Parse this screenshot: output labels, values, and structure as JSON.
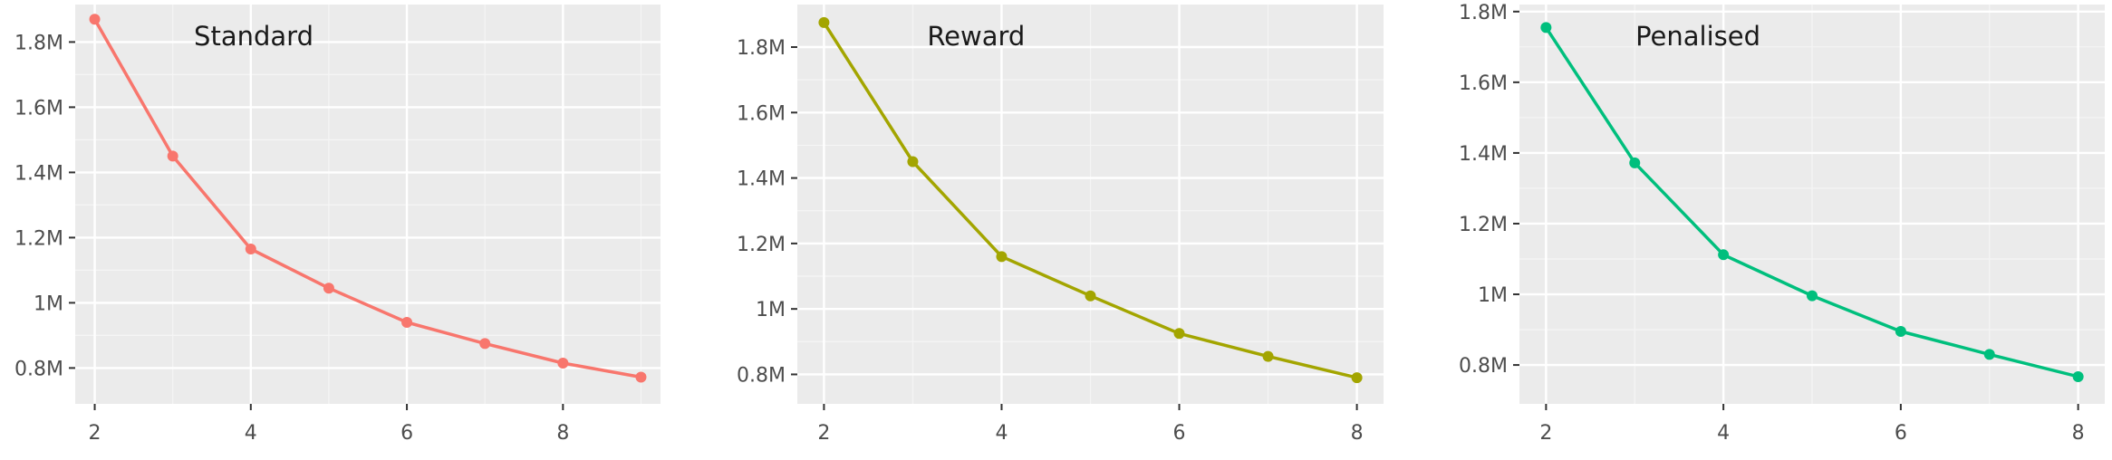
{
  "chart_data": [
    {
      "type": "line",
      "title": "Standard",
      "color": "#F8766D",
      "x": [
        2,
        3,
        4,
        5,
        6,
        7,
        8,
        9
      ],
      "values": [
        1870000,
        1450000,
        1165000,
        1045000,
        940000,
        875000,
        815000,
        772000
      ],
      "xlim": [
        1.75,
        9.25
      ],
      "ylim": [
        690000,
        1915000
      ],
      "xticks": [
        2,
        4,
        6,
        8
      ],
      "xtick_labels": [
        "2",
        "4",
        "6",
        "8"
      ],
      "yticks": [
        800000,
        1000000,
        1200000,
        1400000,
        1600000,
        1800000
      ],
      "ytick_labels": [
        "0.8M",
        "1M",
        "1.2M",
        "1.4M",
        "1.6M",
        "1.8M"
      ],
      "grid": true
    },
    {
      "type": "line",
      "title": "Reward",
      "color": "#A3A500",
      "x": [
        2,
        3,
        4,
        5,
        6,
        7,
        8
      ],
      "values": [
        1875000,
        1450000,
        1160000,
        1040000,
        925000,
        855000,
        790000
      ],
      "xlim": [
        1.7,
        8.3
      ],
      "ylim": [
        710000,
        1930000
      ],
      "xticks": [
        2,
        4,
        6,
        8
      ],
      "xtick_labels": [
        "2",
        "4",
        "6",
        "8"
      ],
      "yticks": [
        800000,
        1000000,
        1200000,
        1400000,
        1600000,
        1800000
      ],
      "ytick_labels": [
        "0.8M",
        "1M",
        "1.2M",
        "1.4M",
        "1.6M",
        "1.8M"
      ],
      "grid": true
    },
    {
      "type": "line",
      "title": "Penalised",
      "color": "#00BF7D",
      "x": [
        2,
        3,
        4,
        5,
        6,
        7,
        8
      ],
      "values": [
        1755000,
        1372000,
        1112000,
        996000,
        895000,
        830000,
        767000
      ],
      "xlim": [
        1.7,
        8.3
      ],
      "ylim": [
        690000,
        1820000
      ],
      "xticks": [
        2,
        4,
        6,
        8
      ],
      "xtick_labels": [
        "2",
        "4",
        "6",
        "8"
      ],
      "yticks": [
        800000,
        1000000,
        1200000,
        1400000,
        1600000,
        1800000
      ],
      "ytick_labels": [
        "0.8M",
        "1M",
        "1.2M",
        "1.4M",
        "1.6M",
        "1.8M"
      ],
      "grid": true
    }
  ]
}
